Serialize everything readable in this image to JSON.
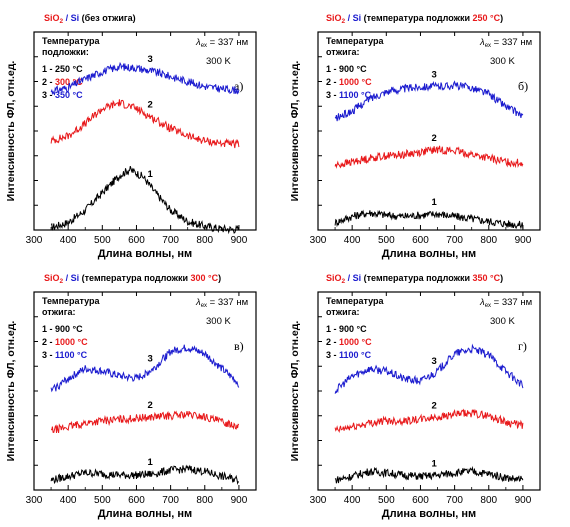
{
  "chart_data": [
    {
      "type": "line",
      "title": {
        "a": "SiO",
        "sub": "2",
        "b": " / Si",
        "c": " (без отжига)"
      },
      "xlabel": "Длина волны, нм",
      "ylabel": "Интенсивность ФЛ, отн.ед.",
      "xlim": [
        300,
        950
      ],
      "xticks": [
        300,
        400,
        500,
        600,
        700,
        800,
        900
      ],
      "legend_title": [
        "Температура",
        "подложки:"
      ],
      "legend": [
        {
          "n": "1",
          "text": "250 °C",
          "color": "#000000"
        },
        {
          "n": "2",
          "text": "300 °C",
          "color": "#e8191b"
        },
        {
          "n": "3",
          "text": "350 °C",
          "color": "#1c1ccf"
        }
      ],
      "excitation": {
        "lambda": "λ",
        "sub": "ex",
        "text": " = 337 нм"
      },
      "temperature": "300 K",
      "panel_label": "а)",
      "curve_labels": [
        "1",
        "2",
        "3"
      ],
      "series": [
        {
          "name": "1",
          "color": "#000000",
          "x": [
            350,
            400,
            450,
            500,
            550,
            580,
            620,
            650,
            700,
            750,
            800,
            850,
            900
          ],
          "y": [
            0.1,
            0.3,
            0.8,
            1.5,
            2.2,
            2.45,
            2.15,
            1.6,
            0.8,
            0.35,
            0.15,
            0.05,
            0.02
          ]
        },
        {
          "name": "2",
          "color": "#e8191b",
          "x": [
            350,
            400,
            450,
            500,
            550,
            600,
            650,
            700,
            750,
            800,
            850,
            900
          ],
          "y": [
            3.6,
            3.8,
            4.3,
            4.9,
            5.15,
            4.9,
            4.5,
            4.1,
            3.8,
            3.6,
            3.5,
            3.45
          ]
        },
        {
          "name": "3",
          "color": "#1c1ccf",
          "x": [
            350,
            400,
            450,
            500,
            550,
            600,
            650,
            700,
            750,
            800,
            850,
            900
          ],
          "y": [
            5.6,
            5.75,
            6.1,
            6.4,
            6.6,
            6.55,
            6.4,
            6.2,
            6.0,
            5.8,
            5.7,
            5.65
          ]
        }
      ]
    },
    {
      "type": "line",
      "title": {
        "a": "SiO",
        "sub": "2",
        "b": " / Si",
        "c": " (температура подложки ",
        "d": "250 °C",
        "e": ")"
      },
      "xlabel": "Длина волны, нм",
      "ylabel": "Интенсивность ФЛ, отн.ед.",
      "xlim": [
        300,
        950
      ],
      "xticks": [
        300,
        400,
        500,
        600,
        700,
        800,
        900
      ],
      "legend_title": [
        "Температура",
        "отжига:"
      ],
      "legend": [
        {
          "n": "1",
          "text": "900 °C",
          "color": "#000000"
        },
        {
          "n": "2",
          "text": "1000 °C",
          "color": "#e8191b"
        },
        {
          "n": "3",
          "text": "1100 °C",
          "color": "#1c1ccf"
        }
      ],
      "excitation": {
        "lambda": "λ",
        "sub": "ex",
        "text": " = 337 нм"
      },
      "temperature": "300 K",
      "panel_label": "б)",
      "curve_labels": [
        "1",
        "2",
        "3"
      ],
      "series": [
        {
          "name": "1",
          "color": "#000000",
          "x": [
            350,
            400,
            450,
            500,
            550,
            600,
            650,
            700,
            750,
            800,
            850,
            900
          ],
          "y": [
            0.3,
            0.55,
            0.7,
            0.6,
            0.55,
            0.6,
            0.65,
            0.55,
            0.45,
            0.35,
            0.25,
            0.2
          ]
        },
        {
          "name": "2",
          "color": "#e8191b",
          "x": [
            350,
            400,
            450,
            500,
            550,
            600,
            650,
            700,
            750,
            800,
            850,
            900
          ],
          "y": [
            2.6,
            2.75,
            2.9,
            3.0,
            3.05,
            3.15,
            3.25,
            3.2,
            3.05,
            2.9,
            2.75,
            2.7
          ]
        },
        {
          "name": "3",
          "color": "#1c1ccf",
          "x": [
            350,
            400,
            450,
            500,
            550,
            600,
            650,
            700,
            750,
            800,
            850,
            900
          ],
          "y": [
            4.5,
            4.8,
            5.3,
            5.6,
            5.7,
            5.8,
            5.8,
            5.85,
            5.75,
            5.5,
            5.0,
            4.6
          ]
        }
      ]
    },
    {
      "type": "line",
      "title": {
        "a": "SiO",
        "sub": "2",
        "b": " / Si",
        "c": " (температура подложки ",
        "d": "300 °C",
        "e": ")"
      },
      "xlabel": "Длина волны, нм",
      "ylabel": "Интенсивность ФЛ, отн.ед.",
      "xlim": [
        300,
        950
      ],
      "xticks": [
        300,
        400,
        500,
        600,
        700,
        800,
        900
      ],
      "legend_title": [
        "Температура",
        "отжига:"
      ],
      "legend": [
        {
          "n": "1",
          "text": "900 °C",
          "color": "#000000"
        },
        {
          "n": "2",
          "text": "1000 °C",
          "color": "#e8191b"
        },
        {
          "n": "3",
          "text": "1100 °C",
          "color": "#1c1ccf"
        }
      ],
      "excitation": {
        "lambda": "λ",
        "sub": "ex",
        "text": " = 337 нм"
      },
      "temperature": "300 K",
      "panel_label": "в)",
      "curve_labels": [
        "1",
        "2",
        "3"
      ],
      "series": [
        {
          "name": "1",
          "color": "#000000",
          "x": [
            350,
            400,
            450,
            500,
            550,
            600,
            650,
            700,
            750,
            800,
            850,
            900
          ],
          "y": [
            0.4,
            0.55,
            0.7,
            0.65,
            0.6,
            0.6,
            0.65,
            0.8,
            0.85,
            0.75,
            0.55,
            0.4
          ]
        },
        {
          "name": "2",
          "color": "#e8191b",
          "x": [
            350,
            400,
            450,
            500,
            550,
            600,
            650,
            700,
            750,
            800,
            850,
            900
          ],
          "y": [
            2.4,
            2.55,
            2.7,
            2.8,
            2.85,
            2.9,
            2.95,
            3.0,
            3.05,
            2.95,
            2.75,
            2.6
          ]
        },
        {
          "name": "3",
          "color": "#1c1ccf",
          "x": [
            350,
            400,
            450,
            500,
            550,
            600,
            650,
            700,
            750,
            800,
            850,
            900
          ],
          "y": [
            4.0,
            4.5,
            4.9,
            4.8,
            4.6,
            4.5,
            4.9,
            5.6,
            5.75,
            5.5,
            4.9,
            4.3
          ]
        }
      ]
    },
    {
      "type": "line",
      "title": {
        "a": "SiO",
        "sub": "2",
        "b": " / Si",
        "c": " (температура подложки ",
        "d": "350 °C",
        "e": ")"
      },
      "xlabel": "Длина волны, нм",
      "ylabel": "Интенсивность ФЛ, отн.ед.",
      "xlim": [
        300,
        950
      ],
      "xticks": [
        300,
        400,
        500,
        600,
        700,
        800,
        900
      ],
      "legend_title": [
        "Температура",
        "отжига:"
      ],
      "legend": [
        {
          "n": "1",
          "text": "900 °C",
          "color": "#000000"
        },
        {
          "n": "2",
          "text": "1000 °C",
          "color": "#e8191b"
        },
        {
          "n": "3",
          "text": "1100 °C",
          "color": "#1c1ccf"
        }
      ],
      "excitation": {
        "lambda": "λ",
        "sub": "ex",
        "text": " = 337 нм"
      },
      "temperature": "300 K",
      "panel_label": "г)",
      "curve_labels": [
        "1",
        "2",
        "3"
      ],
      "series": [
        {
          "name": "1",
          "color": "#000000",
          "x": [
            350,
            400,
            450,
            500,
            550,
            600,
            650,
            700,
            750,
            800,
            850,
            900
          ],
          "y": [
            0.4,
            0.55,
            0.75,
            0.7,
            0.6,
            0.55,
            0.6,
            0.7,
            0.75,
            0.65,
            0.5,
            0.4
          ]
        },
        {
          "name": "2",
          "color": "#e8191b",
          "x": [
            350,
            400,
            450,
            500,
            550,
            600,
            650,
            700,
            750,
            800,
            850,
            900
          ],
          "y": [
            2.4,
            2.55,
            2.7,
            2.8,
            2.8,
            2.85,
            2.95,
            3.05,
            3.1,
            3.0,
            2.75,
            2.6
          ]
        },
        {
          "name": "3",
          "color": "#1c1ccf",
          "x": [
            350,
            400,
            450,
            500,
            550,
            600,
            650,
            700,
            750,
            800,
            850,
            900
          ],
          "y": [
            4.0,
            4.6,
            4.9,
            4.8,
            4.5,
            4.4,
            4.8,
            5.5,
            5.7,
            5.45,
            4.8,
            4.2
          ]
        }
      ]
    }
  ]
}
